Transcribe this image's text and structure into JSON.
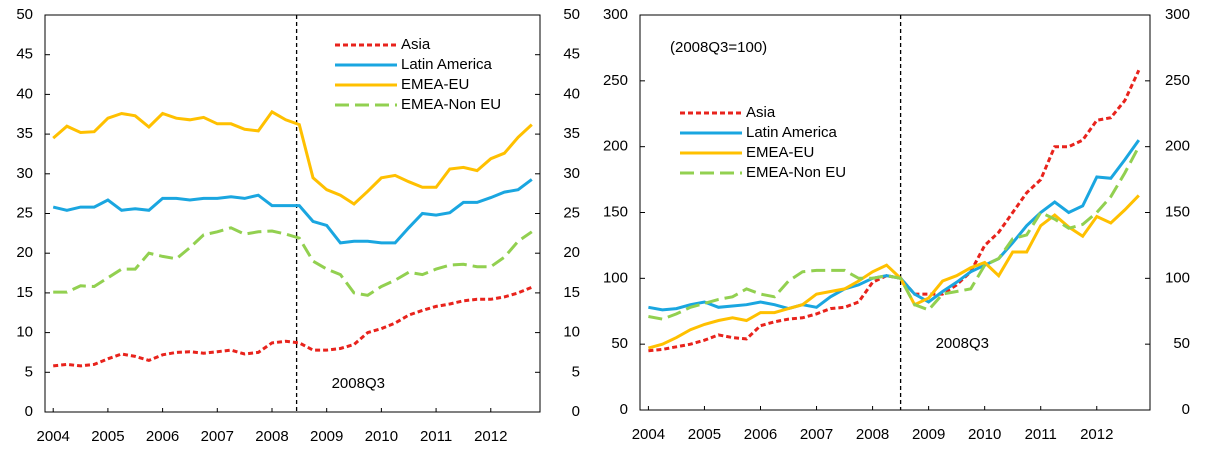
{
  "chart_data": [
    {
      "type": "line",
      "x": [
        2004,
        2004.25,
        2004.5,
        2004.75,
        2005,
        2005.25,
        2005.5,
        2005.75,
        2006,
        2006.25,
        2006.5,
        2006.75,
        2007,
        2007.25,
        2007.5,
        2007.75,
        2008,
        2008.25,
        2008.5,
        2008.75,
        2009,
        2009.25,
        2009.5,
        2009.75,
        2010,
        2010.25,
        2010.5,
        2010.75,
        2011,
        2011.25,
        2011.5,
        2011.75,
        2012,
        2012.25,
        2012.5,
        2012.75
      ],
      "xlim": [
        2003.85,
        2012.9
      ],
      "xticks": [
        2004,
        2005,
        2006,
        2007,
        2008,
        2009,
        2010,
        2011,
        2012
      ],
      "ylim": [
        0,
        50
      ],
      "yticks": [
        0,
        5,
        10,
        15,
        20,
        25,
        30,
        35,
        40,
        45,
        50
      ],
      "y2lim": [
        0,
        50
      ],
      "y2ticks": [
        0,
        5,
        10,
        15,
        20,
        25,
        30,
        35,
        40,
        45,
        50
      ],
      "legend": "top-right",
      "annotations": [
        {
          "text": "2008Q3",
          "x": 2008.45
        }
      ],
      "series": [
        {
          "name": "Asia",
          "color": "#e8231c",
          "line_style": "short-dash",
          "values": [
            5.8,
            6.0,
            5.8,
            6.0,
            6.7,
            7.3,
            7.0,
            6.5,
            7.2,
            7.5,
            7.6,
            7.4,
            7.6,
            7.8,
            7.3,
            7.5,
            8.7,
            8.9,
            8.7,
            7.8,
            7.8,
            8.0,
            8.5,
            10.0,
            10.5,
            11.2,
            12.2,
            12.8,
            13.3,
            13.6,
            14.0,
            14.2,
            14.2,
            14.5,
            15.0,
            15.7
          ]
        },
        {
          "name": "Latin America",
          "color": "#1aa6e0",
          "line_style": "solid",
          "values": [
            25.8,
            25.4,
            25.8,
            25.8,
            26.7,
            25.4,
            25.6,
            25.4,
            26.9,
            26.9,
            26.7,
            26.9,
            26.9,
            27.1,
            26.9,
            27.3,
            26.0,
            26.0,
            26.0,
            24.0,
            23.5,
            21.3,
            21.5,
            21.5,
            21.3,
            21.3,
            23.2,
            25.0,
            24.8,
            25.1,
            26.4,
            26.4,
            27.0,
            27.7,
            28.0,
            29.3
          ]
        },
        {
          "name": "EMEA-EU",
          "color": "#ffc000",
          "line_style": "solid",
          "values": [
            34.5,
            36.0,
            35.2,
            35.3,
            37.0,
            37.6,
            37.3,
            35.9,
            37.6,
            37.0,
            36.8,
            37.1,
            36.3,
            36.3,
            35.6,
            35.4,
            37.8,
            36.8,
            36.2,
            29.5,
            28.0,
            27.3,
            26.2,
            27.8,
            29.5,
            29.8,
            29.0,
            28.3,
            28.3,
            30.6,
            30.8,
            30.4,
            31.9,
            32.6,
            34.6,
            36.2
          ]
        },
        {
          "name": "EMEA-Non EU",
          "color": "#92d050",
          "line_style": "long-dash",
          "values": [
            15.1,
            15.1,
            15.9,
            15.8,
            16.9,
            18.0,
            18.0,
            20.0,
            19.6,
            19.3,
            20.7,
            22.3,
            22.7,
            23.2,
            22.4,
            22.7,
            22.8,
            22.4,
            21.9,
            19.0,
            18.0,
            17.3,
            15.0,
            14.7,
            15.8,
            16.6,
            17.6,
            17.3,
            18.0,
            18.5,
            18.6,
            18.3,
            18.3,
            19.5,
            21.5,
            22.7
          ]
        }
      ]
    },
    {
      "type": "line",
      "subtitle": "(2008Q3=100)",
      "x": [
        2004,
        2004.25,
        2004.5,
        2004.75,
        2005,
        2005.25,
        2005.5,
        2005.75,
        2006,
        2006.25,
        2006.5,
        2006.75,
        2007,
        2007.25,
        2007.5,
        2007.75,
        2008,
        2008.25,
        2008.5,
        2008.75,
        2009,
        2009.25,
        2009.5,
        2009.75,
        2010,
        2010.25,
        2010.5,
        2010.75,
        2011,
        2011.25,
        2011.5,
        2011.75,
        2012,
        2012.25,
        2012.5,
        2012.75
      ],
      "xlim": [
        2003.85,
        2012.95
      ],
      "xticks": [
        2004,
        2005,
        2006,
        2007,
        2008,
        2009,
        2010,
        2011,
        2012
      ],
      "ylim": [
        0,
        300
      ],
      "yticks": [
        0,
        50,
        100,
        150,
        200,
        250,
        300
      ],
      "y2lim": [
        0,
        300
      ],
      "y2ticks": [
        0,
        50,
        100,
        150,
        200,
        250,
        300
      ],
      "legend": "upper-left",
      "annotations": [
        {
          "text": "2008Q3",
          "x": 2008.5
        }
      ],
      "series": [
        {
          "name": "Asia",
          "color": "#e8231c",
          "line_style": "short-dash",
          "values": [
            45,
            46,
            48,
            50,
            53,
            57,
            55,
            54,
            64,
            67,
            69,
            70,
            73,
            77,
            78,
            82,
            97,
            102,
            100,
            88,
            88,
            88,
            95,
            105,
            125,
            135,
            150,
            165,
            175,
            200,
            200,
            205,
            220,
            222,
            235,
            258
          ]
        },
        {
          "name": "Latin America",
          "color": "#1aa6e0",
          "line_style": "solid",
          "values": [
            78,
            76,
            77,
            80,
            82,
            78,
            79,
            80,
            82,
            80,
            77,
            80,
            78,
            86,
            92,
            95,
            100,
            102,
            100,
            88,
            82,
            90,
            97,
            105,
            110,
            115,
            127,
            140,
            150,
            158,
            150,
            155,
            177,
            176,
            190,
            205
          ]
        },
        {
          "name": "EMEA-EU",
          "color": "#ffc000",
          "line_style": "solid",
          "values": [
            47,
            50,
            55,
            61,
            65,
            68,
            70,
            68,
            74,
            74,
            77,
            80,
            88,
            90,
            92,
            98,
            105,
            110,
            100,
            80,
            85,
            98,
            102,
            108,
            112,
            102,
            120,
            120,
            140,
            148,
            139,
            132,
            147,
            142,
            152,
            163
          ]
        },
        {
          "name": "EMEA-Non EU",
          "color": "#92d050",
          "line_style": "long-dash",
          "values": [
            71,
            69,
            73,
            78,
            81,
            84,
            86,
            92,
            88,
            86,
            98,
            105,
            106,
            106,
            106,
            100,
            100,
            102,
            100,
            80,
            76,
            88,
            90,
            92,
            110,
            115,
            130,
            133,
            150,
            145,
            138,
            141,
            150,
            162,
            180,
            200
          ]
        }
      ]
    }
  ]
}
